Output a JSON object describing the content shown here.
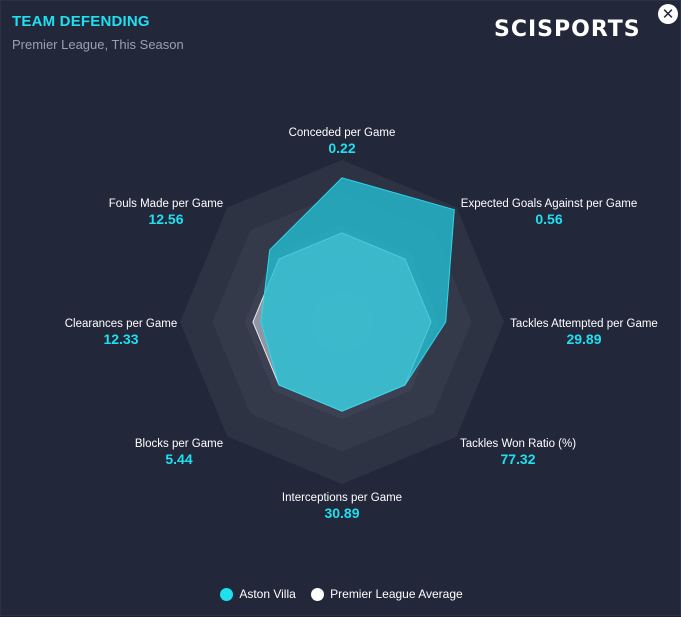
{
  "header": {
    "title": "TEAM DEFENDING",
    "subtitle": "Premier League, This Season",
    "brand": "SCISPORTS",
    "close_icon": "close-icon"
  },
  "colors": {
    "accent": "#1ee0f0",
    "team_fill": "#22c1d6",
    "average_fill": "#d9dbe2",
    "label_text": "#ffffff",
    "value_text": "#1ee0f0",
    "background": "#22273a"
  },
  "legend": {
    "items": [
      {
        "label": "Aston Villa",
        "color": "#1ee0f0"
      },
      {
        "label": "Premier League Average",
        "color": "#ffffff"
      }
    ]
  },
  "chart_data": {
    "type": "radar",
    "title": "TEAM DEFENDING",
    "subtitle": "Premier League, This Season",
    "axes": [
      {
        "label": "Conceded per Game",
        "value": "0.22"
      },
      {
        "label": "Expected Goals Against per Game",
        "value": "0.56"
      },
      {
        "label": "Tackles Attempted per Game",
        "value": "29.89"
      },
      {
        "label": "Tackles Won Ratio (%)",
        "value": "77.32"
      },
      {
        "label": "Interceptions per Game",
        "value": "30.89"
      },
      {
        "label": "Blocks per Game",
        "value": "5.44"
      },
      {
        "label": "Clearances per Game",
        "value": "12.33"
      },
      {
        "label": "Fouls Made per Game",
        "value": "12.56"
      }
    ],
    "grid_rings": 5,
    "series": [
      {
        "name": "Aston Villa",
        "scores": [
          0.89,
          0.98,
          0.64,
          0.55,
          0.55,
          0.55,
          0.5,
          0.63
        ]
      },
      {
        "name": "Premier League Average",
        "scores": [
          0.55,
          0.55,
          0.55,
          0.55,
          0.55,
          0.55,
          0.55,
          0.55
        ]
      }
    ]
  }
}
